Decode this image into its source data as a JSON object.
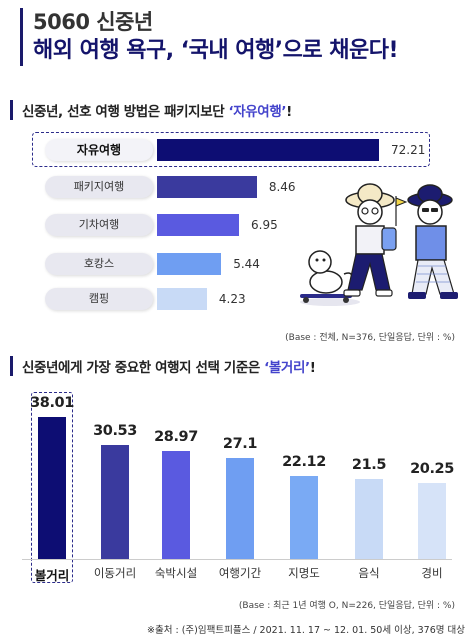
{
  "header": {
    "title_line1": "5060 신중년",
    "title_line2": "해외 여행 욕구, ‘국내 여행’으로 채운다!"
  },
  "section1": {
    "title_prefix": "신중년, 선호 여행 방법은 패키지보단 ",
    "title_highlight": "‘자유여행’",
    "title_suffix": "!",
    "note": "(Base : 전체, N=376, 단일응답, 단위 : %)"
  },
  "section2": {
    "title_prefix": "신중년에게 가장 중요한 여행지 선택 기준은 ",
    "title_highlight": "‘볼거리’",
    "title_suffix": "!",
    "note": "(Base : 최근 1년 여행 O, N=226, 단일응답, 단위 : %)"
  },
  "footer": "※출처 : (주)임팩트피플스 / 2021. 11. 17 ~ 12. 01. 50세 이상, 376명 대상",
  "chart_data": [
    {
      "type": "bar",
      "orientation": "horizontal",
      "categories": [
        "자유여행",
        "패키지여행",
        "기차여행",
        "호캉스",
        "캠핑"
      ],
      "values": [
        72.21,
        8.46,
        6.95,
        5.44,
        4.23
      ],
      "value_labels": [
        "72.21",
        "8.46",
        "6.95",
        "5.44",
        "4.23"
      ],
      "colors": [
        "#0d0d73",
        "#3a3a9e",
        "#5a5ae0",
        "#6f9ef2",
        "#c8daf6"
      ],
      "xlim": [
        0,
        80
      ],
      "grid": false
    },
    {
      "type": "bar",
      "orientation": "vertical",
      "categories": [
        "볼거리",
        "이동거리",
        "숙박시설",
        "여행기간",
        "지명도",
        "음식",
        "경비"
      ],
      "values": [
        38.01,
        30.53,
        28.97,
        27.1,
        22.12,
        21.5,
        20.25
      ],
      "value_labels": [
        "38.01",
        "30.53",
        "28.97",
        "27.1",
        "22.12",
        "21.5",
        "20.25"
      ],
      "colors": [
        "#0d0d73",
        "#3a3a9e",
        "#5a5ae0",
        "#6f9ef2",
        "#7aaaf4",
        "#c8daf6",
        "#d6e3f8"
      ],
      "ylim": [
        0,
        40
      ],
      "grid": false
    }
  ]
}
